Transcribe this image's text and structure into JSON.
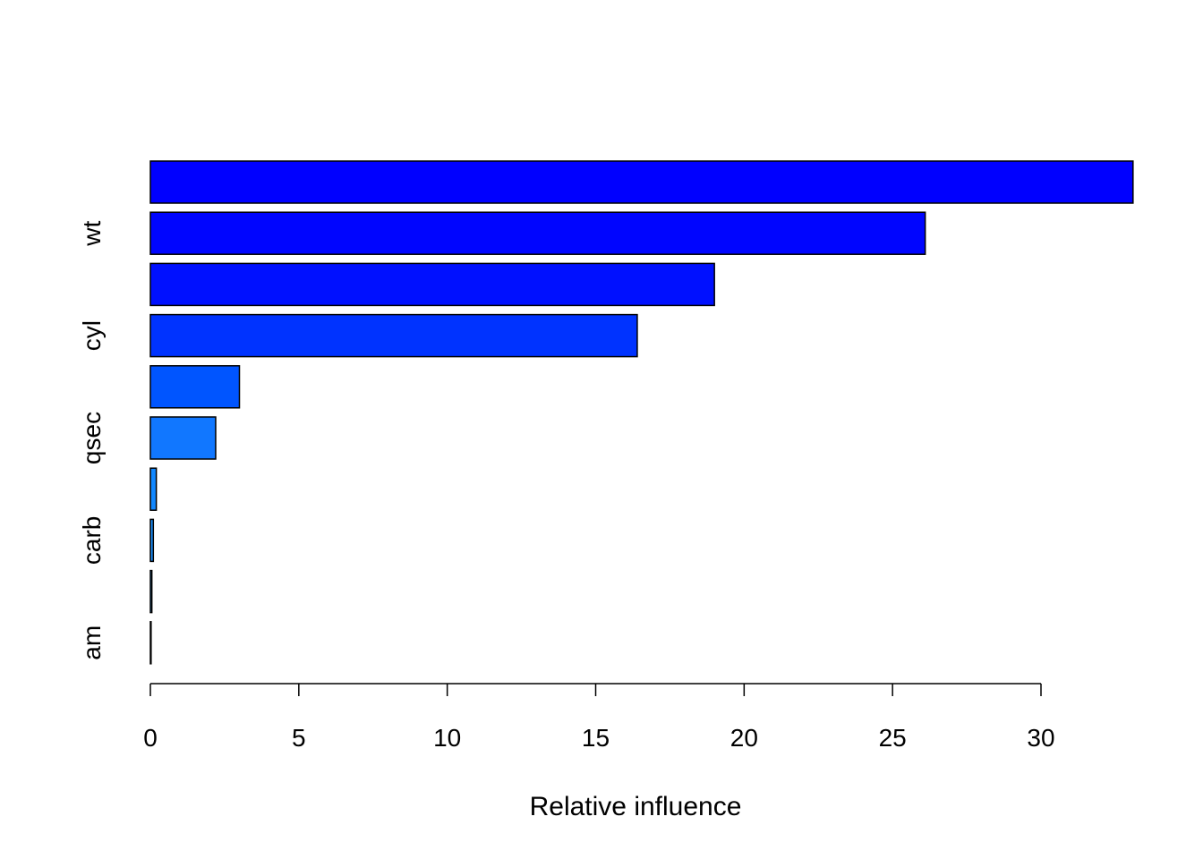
{
  "chart_data": {
    "type": "bar",
    "orientation": "horizontal",
    "title": "",
    "xlabel": "Relative influence",
    "ylabel": "",
    "xlim": [
      0,
      33.1
    ],
    "x_ticks": [
      0,
      5,
      10,
      15,
      20,
      25,
      30
    ],
    "grid": false,
    "legend": "none",
    "categories_top_to_bottom": [
      "",
      "wt",
      "",
      "cyl",
      "",
      "qsec",
      "",
      "carb",
      "",
      "am"
    ],
    "values": [
      33.1,
      26.1,
      19.0,
      16.4,
      3.0,
      2.2,
      0.2,
      0.1,
      0.05,
      0.02
    ],
    "colors": [
      "#0000FF",
      "#0005FF",
      "#0010FF",
      "#0033FF",
      "#0055FF",
      "#1177FF",
      "#1188FF",
      "#1a90ff",
      "#2299ff",
      "#33aaff"
    ]
  }
}
